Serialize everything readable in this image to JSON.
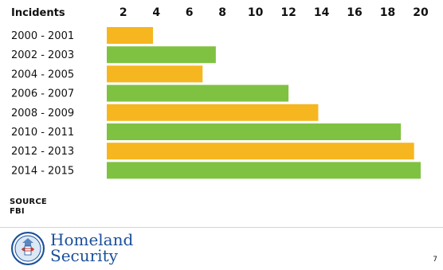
{
  "chart_data": {
    "type": "bar",
    "orientation": "horizontal",
    "title": "",
    "xlabel": "",
    "ylabel": "",
    "category_header": "Incidents",
    "x_ticks": [
      2,
      4,
      6,
      8,
      10,
      12,
      14,
      16,
      18,
      20
    ],
    "xlim": [
      1,
      20
    ],
    "grid": false,
    "categories": [
      "2000 - 2001",
      "2002 - 2003",
      "2004 - 2005",
      "2006 - 2007",
      "2008 - 2009",
      "2010 - 2011",
      "2012 - 2013",
      "2014 - 2015"
    ],
    "values": [
      3.8,
      7.6,
      6.8,
      12.0,
      13.8,
      18.8,
      19.6,
      20.0
    ],
    "colors": [
      "#f6b61f",
      "#7fc241",
      "#f6b61f",
      "#7fc241",
      "#f6b61f",
      "#7fc241",
      "#f6b61f",
      "#7fc241"
    ],
    "source_label": "SOURCE",
    "source_value": "FBI"
  },
  "logo": {
    "line1": "Homeland",
    "line2": "Security",
    "seal_text": "U.S. DEPARTMENT OF HOMELAND SECURITY"
  },
  "page_number": "7"
}
